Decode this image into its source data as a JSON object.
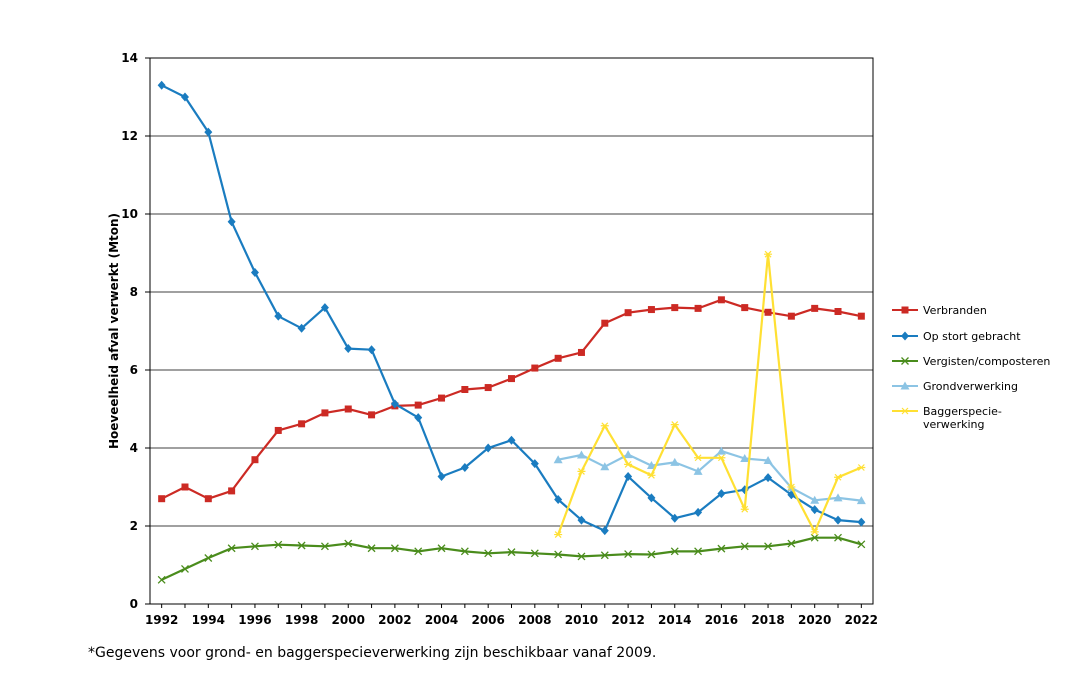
{
  "chart_data": {
    "type": "line",
    "title": "",
    "xlabel": "",
    "ylabel": "Hoeveelheid afval verwerkt (Mton)",
    "xlim": [
      1991.5,
      2022.5
    ],
    "ylim": [
      0,
      14
    ],
    "yticks": [
      "0",
      "2",
      "4",
      "6",
      "8",
      "10",
      "12",
      "14"
    ],
    "xticks": [
      "1992",
      "1994",
      "1996",
      "1998",
      "2000",
      "2002",
      "2004",
      "2006",
      "2008",
      "2010",
      "2012",
      "2014",
      "2016",
      "2018",
      "2020",
      "2022"
    ],
    "grid": true,
    "legend_position": "right",
    "series": [
      {
        "name": "Verbranden",
        "color": "#cc2a24",
        "marker": "square",
        "x": [
          1992,
          1993,
          1994,
          1995,
          1996,
          1997,
          1998,
          1999,
          2000,
          2001,
          2002,
          2003,
          2004,
          2005,
          2006,
          2007,
          2008,
          2009,
          2010,
          2011,
          2012,
          2013,
          2014,
          2015,
          2016,
          2017,
          2018,
          2019,
          2020,
          2021,
          2022
        ],
        "values": [
          2.7,
          3.0,
          2.7,
          2.9,
          3.7,
          4.45,
          4.62,
          4.9,
          5.0,
          4.85,
          5.08,
          5.1,
          5.28,
          5.5,
          5.55,
          5.78,
          6.05,
          6.3,
          6.45,
          7.2,
          7.47,
          7.55,
          7.6,
          7.58,
          7.8,
          7.6,
          7.48,
          7.38,
          7.58,
          7.5,
          7.38
        ]
      },
      {
        "name": "Op stort gebracht",
        "color": "#1a7cc0",
        "marker": "diamond",
        "x": [
          1992,
          1993,
          1994,
          1995,
          1996,
          1997,
          1998,
          1999,
          2000,
          2001,
          2002,
          2003,
          2004,
          2005,
          2006,
          2007,
          2008,
          2009,
          2010,
          2011,
          2012,
          2013,
          2014,
          2015,
          2016,
          2017,
          2018,
          2019,
          2020,
          2021,
          2022
        ],
        "values": [
          13.3,
          13.0,
          12.1,
          9.8,
          8.5,
          7.38,
          7.07,
          7.6,
          6.55,
          6.52,
          5.13,
          4.78,
          3.27,
          3.5,
          4.0,
          4.2,
          3.6,
          2.68,
          2.15,
          1.88,
          3.27,
          2.72,
          2.2,
          2.35,
          2.83,
          2.93,
          3.24,
          2.8,
          2.42,
          2.15,
          2.1
        ]
      },
      {
        "name": "Vergisten/composteren",
        "color": "#4a8c1c",
        "marker": "x",
        "x": [
          1992,
          1993,
          1994,
          1995,
          1996,
          1997,
          1998,
          1999,
          2000,
          2001,
          2002,
          2003,
          2004,
          2005,
          2006,
          2007,
          2008,
          2009,
          2010,
          2011,
          2012,
          2013,
          2014,
          2015,
          2016,
          2017,
          2018,
          2019,
          2020,
          2021,
          2022
        ],
        "values": [
          0.62,
          0.9,
          1.18,
          1.43,
          1.48,
          1.52,
          1.5,
          1.48,
          1.55,
          1.43,
          1.43,
          1.35,
          1.43,
          1.35,
          1.3,
          1.33,
          1.3,
          1.27,
          1.22,
          1.25,
          1.28,
          1.27,
          1.35,
          1.35,
          1.42,
          1.48,
          1.48,
          1.55,
          1.7,
          1.7,
          1.53
        ]
      },
      {
        "name": "Grondverwerking",
        "color": "#8cc4e4",
        "marker": "triangle",
        "x": [
          2009,
          2010,
          2011,
          2012,
          2013,
          2014,
          2015,
          2016,
          2017,
          2018,
          2019,
          2020,
          2021,
          2022
        ],
        "values": [
          3.7,
          3.82,
          3.52,
          3.83,
          3.55,
          3.63,
          3.4,
          3.92,
          3.73,
          3.68,
          2.98,
          2.66,
          2.72,
          2.65
        ]
      },
      {
        "name": "Baggerspecie-verwerking",
        "color": "#ffe033",
        "marker": "star",
        "x": [
          2009,
          2010,
          2011,
          2012,
          2013,
          2014,
          2015,
          2016,
          2017,
          2018,
          2019,
          2020,
          2021,
          2022
        ],
        "values": [
          1.78,
          3.4,
          4.57,
          3.58,
          3.3,
          4.6,
          3.75,
          3.75,
          2.43,
          8.97,
          3.0,
          1.85,
          3.25,
          3.5
        ]
      }
    ],
    "legend": [
      {
        "lines": [
          "Verbranden"
        ]
      },
      {
        "lines": [
          "Op stort gebracht"
        ]
      },
      {
        "lines": [
          "Vergisten/composteren"
        ]
      },
      {
        "lines": [
          "Grondverwerking"
        ]
      },
      {
        "lines": [
          "Baggerspecie-",
          "verwerking"
        ]
      }
    ]
  },
  "footnote": "*Gegevens voor grond- en baggerspecieverwerking zijn beschikbaar vanaf 2009."
}
